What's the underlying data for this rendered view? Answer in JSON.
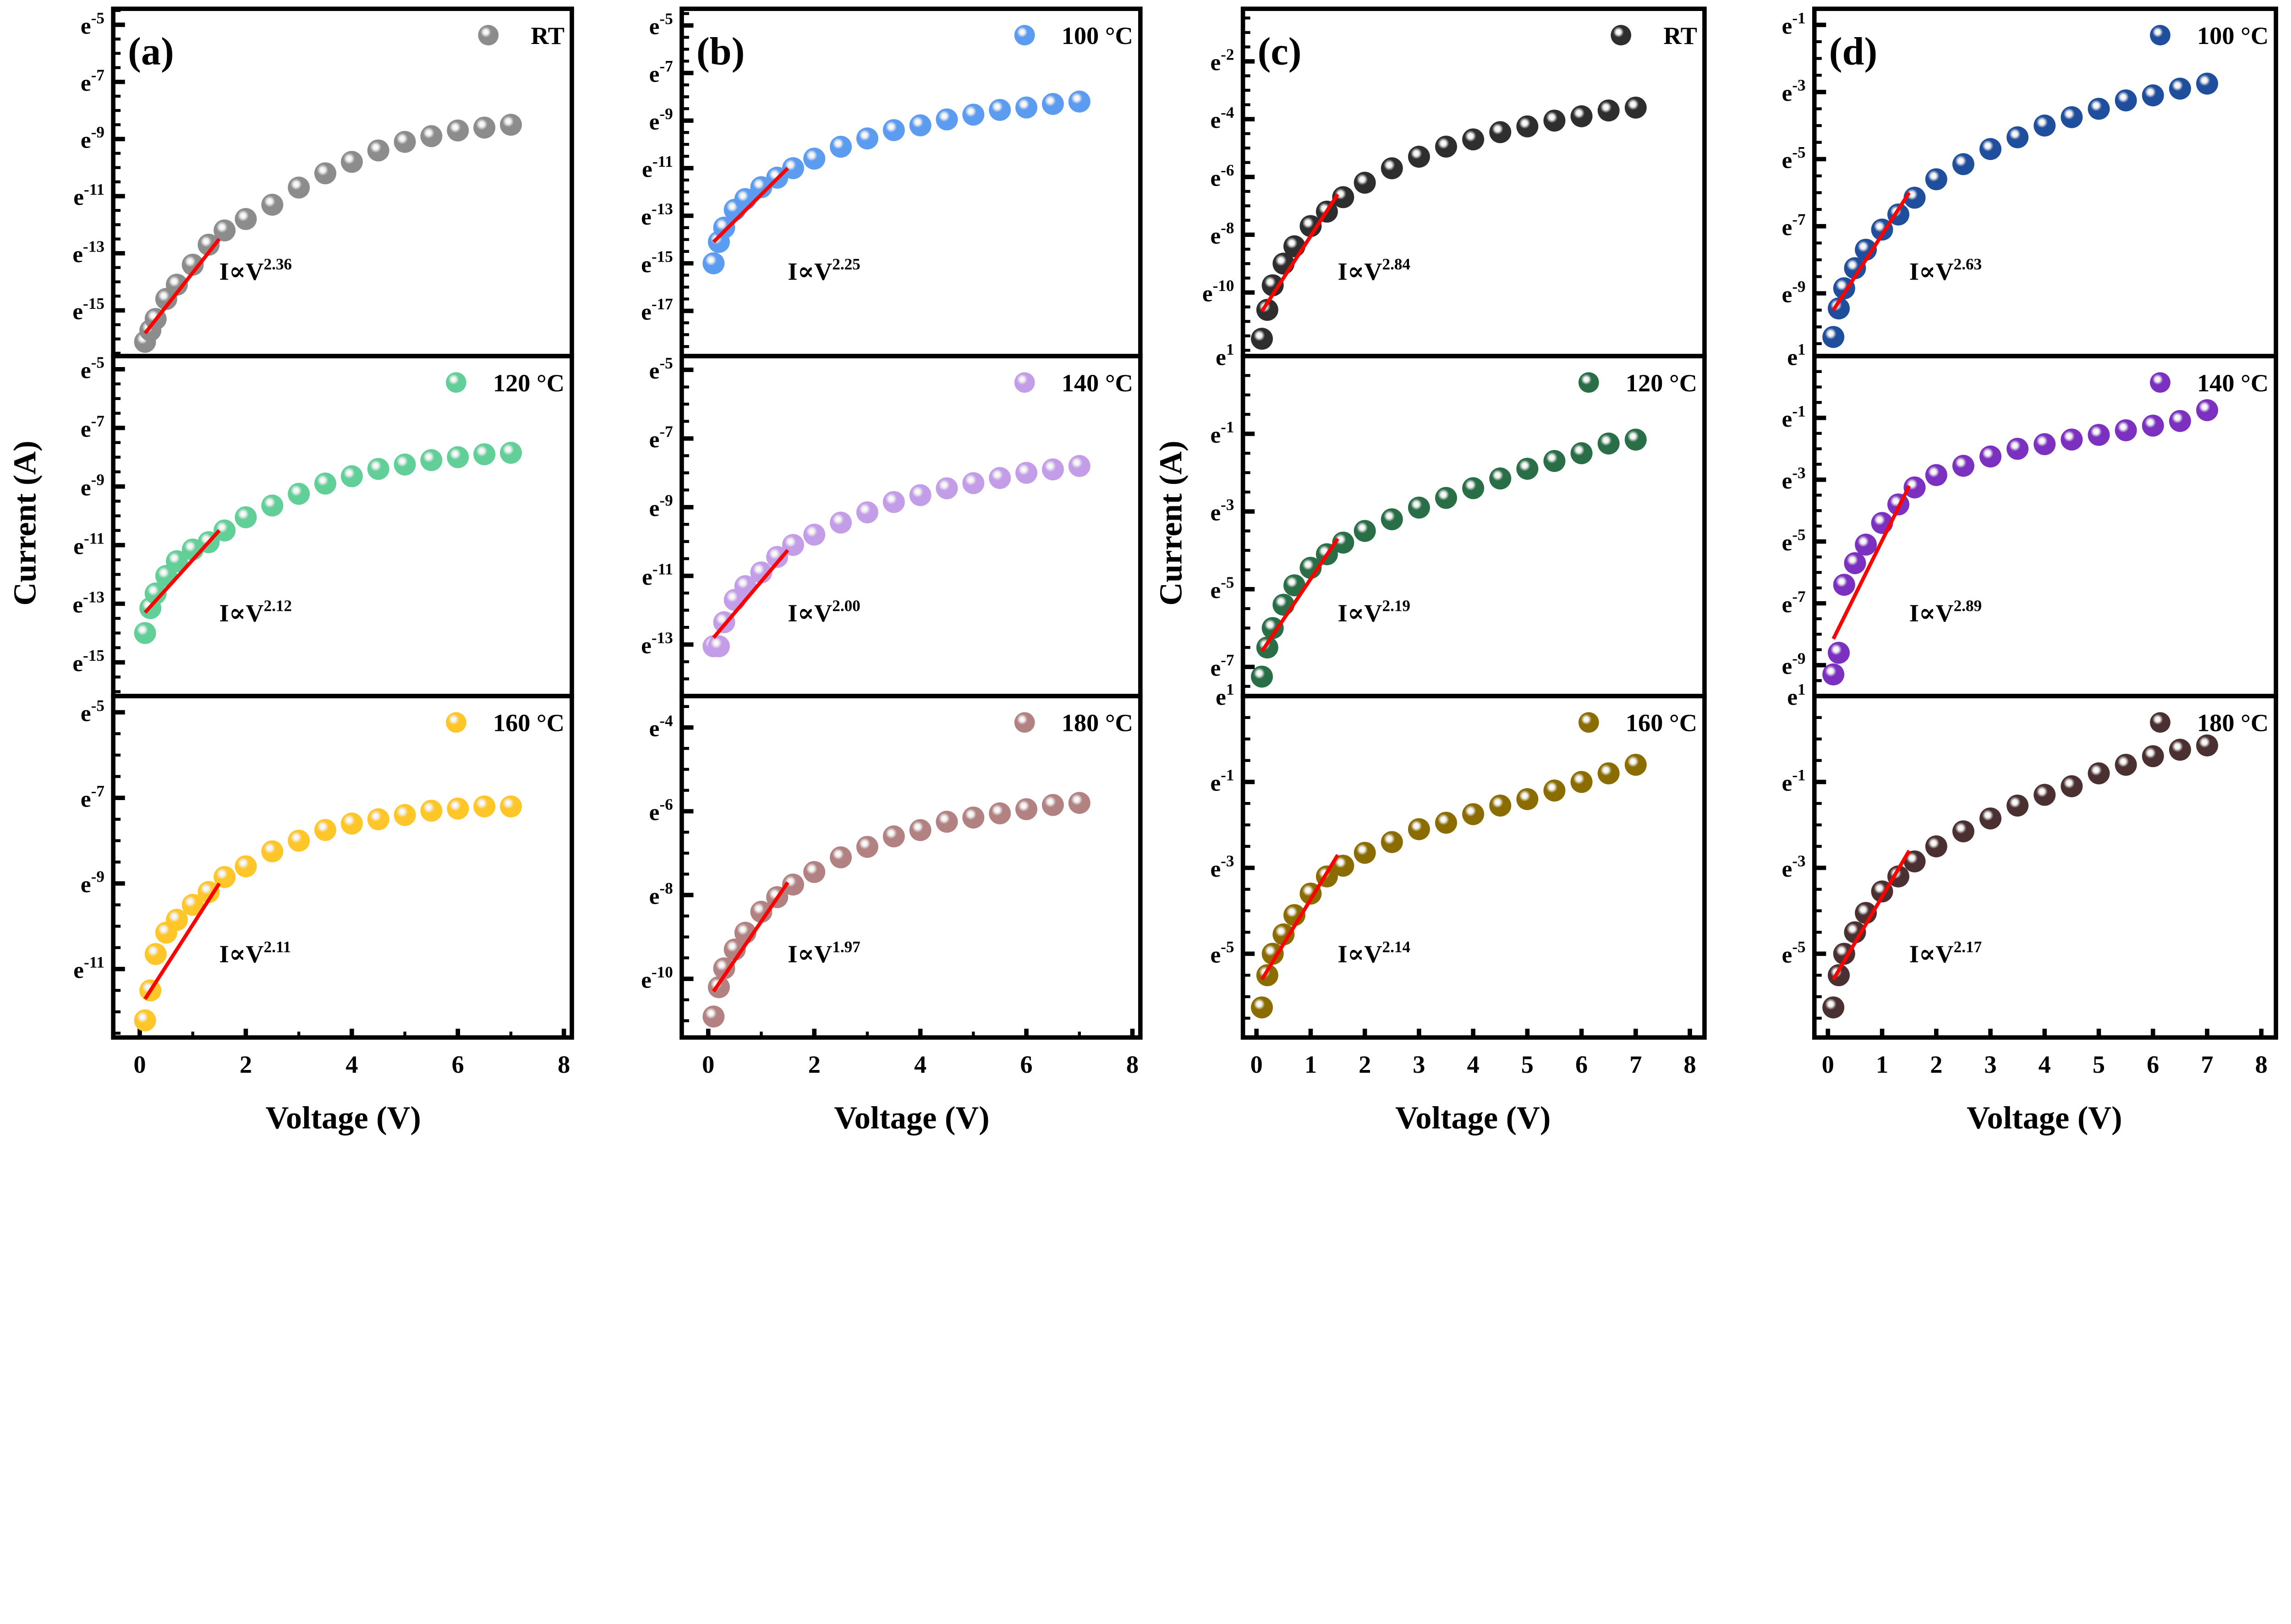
{
  "figure": {
    "xlabel": "Voltage (V)",
    "ylabel": "Current (A)",
    "tick_base": "e",
    "y_scale": "ln"
  },
  "chart_data": [
    {
      "type": "scatter",
      "panel": "(a)",
      "legend": "RT",
      "color": "#8c8c8c",
      "xlim": [
        -0.5,
        8.15
      ],
      "ylim": [
        -16.6,
        -4.44
      ],
      "xticks": [
        "0",
        "2",
        "4",
        "6",
        "8"
      ],
      "yticks": [
        "-5",
        "-7",
        "-9",
        "-11",
        "-13",
        "-15"
      ],
      "x": [
        0.1,
        0.2,
        0.3,
        0.5,
        0.7,
        1.0,
        1.3,
        1.6,
        2,
        2.5,
        3,
        3.5,
        4,
        4.5,
        5,
        5.5,
        6,
        6.5,
        7
      ],
      "y": [
        -16.1,
        -15.7,
        -15.3,
        -14.6,
        -14.1,
        -13.4,
        -12.7,
        -12.2,
        -11.8,
        -11.3,
        -10.7,
        -10.2,
        -9.8,
        -9.4,
        -9.1,
        -8.9,
        -8.7,
        -8.6,
        -8.5
      ],
      "fit": {
        "x": [
          0.1,
          1.5
        ],
        "y": [
          -15.8,
          -12.5
        ],
        "label_base": "I∝V",
        "label_exp": "2.36"
      }
    },
    {
      "type": "scatter",
      "panel": "",
      "legend": "120 °C",
      "color": "#62cf98",
      "xlim": [
        -0.5,
        8.15
      ],
      "ylim": [
        -16.15,
        -4.55
      ],
      "xticks": [
        "0",
        "2",
        "4",
        "6",
        "8"
      ],
      "yticks": [
        "-5",
        "-7",
        "-9",
        "-11",
        "-13",
        "-15"
      ],
      "x": [
        0.1,
        0.2,
        0.3,
        0.5,
        0.7,
        1.0,
        1.3,
        1.6,
        2,
        2.5,
        3,
        3.5,
        4,
        4.5,
        5,
        5.5,
        6,
        6.5,
        7
      ],
      "y": [
        -14.0,
        -13.15,
        -12.65,
        -12.05,
        -11.55,
        -11.15,
        -10.9,
        -10.5,
        -10.05,
        -9.65,
        -9.25,
        -8.9,
        -8.65,
        -8.4,
        -8.25,
        -8.1,
        -8.0,
        -7.9,
        -7.85
      ],
      "fit": {
        "x": [
          0.1,
          1.5
        ],
        "y": [
          -13.3,
          -10.5
        ],
        "label_base": "I∝V",
        "label_exp": "2.12"
      }
    },
    {
      "type": "scatter",
      "panel": "",
      "legend": "160 °C",
      "color": "#ffc62a",
      "xlim": [
        -0.5,
        8.15
      ],
      "ylim": [
        -12.6,
        -4.62
      ],
      "xticks": [
        "0",
        "2",
        "4",
        "6",
        "8"
      ],
      "yticks": [
        "-5",
        "-7",
        "-9",
        "-11"
      ],
      "x": [
        0.1,
        0.2,
        0.3,
        0.5,
        0.7,
        1.0,
        1.3,
        1.6,
        2,
        2.5,
        3,
        3.5,
        4,
        4.5,
        5,
        5.5,
        6,
        6.5,
        7
      ],
      "y": [
        -12.2,
        -11.5,
        -10.65,
        -10.15,
        -9.85,
        -9.5,
        -9.2,
        -8.85,
        -8.6,
        -8.25,
        -8.0,
        -7.75,
        -7.6,
        -7.5,
        -7.4,
        -7.3,
        -7.25,
        -7.2,
        -7.2
      ],
      "fit": {
        "x": [
          0.1,
          1.5
        ],
        "y": [
          -11.7,
          -9.0
        ],
        "label_base": "I∝V",
        "label_exp": "2.11"
      }
    },
    {
      "type": "scatter",
      "panel": "(b)",
      "legend": "100 °C",
      "color": "#5b9bf0",
      "xlim": [
        -0.5,
        8.15
      ],
      "ylim": [
        -18.9,
        -4.3
      ],
      "xticks": [
        "0",
        "2",
        "4",
        "6",
        "8"
      ],
      "yticks": [
        "-5",
        "-7",
        "-9",
        "-11",
        "-13",
        "-15",
        "-17"
      ],
      "x": [
        0.1,
        0.2,
        0.3,
        0.5,
        0.7,
        1.0,
        1.3,
        1.6,
        2,
        2.5,
        3,
        3.5,
        4,
        4.5,
        5,
        5.5,
        6,
        6.5,
        7
      ],
      "y": [
        -15.0,
        -14.1,
        -13.5,
        -12.75,
        -12.3,
        -11.8,
        -11.4,
        -11.0,
        -10.6,
        -10.1,
        -9.75,
        -9.4,
        -9.2,
        -8.95,
        -8.75,
        -8.55,
        -8.45,
        -8.3,
        -8.2
      ],
      "fit": {
        "x": [
          0.1,
          1.5
        ],
        "y": [
          -14.1,
          -11.0
        ],
        "label_base": "I∝V",
        "label_exp": "2.25"
      }
    },
    {
      "type": "scatter",
      "panel": "",
      "legend": "140 °C",
      "color": "#c49de8",
      "xlim": [
        -0.5,
        8.15
      ],
      "ylim": [
        -14.5,
        -4.6
      ],
      "xticks": [
        "0",
        "2",
        "4",
        "6",
        "8"
      ],
      "yticks": [
        "-5",
        "-7",
        "-9",
        "-11",
        "-13"
      ],
      "x": [
        0.1,
        0.2,
        0.3,
        0.5,
        0.7,
        1.0,
        1.3,
        1.6,
        2,
        2.5,
        3,
        3.5,
        4,
        4.5,
        5,
        5.5,
        6,
        6.5,
        7
      ],
      "y": [
        -13.05,
        -13.05,
        -12.35,
        -11.7,
        -11.3,
        -10.9,
        -10.45,
        -10.1,
        -9.8,
        -9.45,
        -9.15,
        -8.85,
        -8.65,
        -8.45,
        -8.3,
        -8.15,
        -8.0,
        -7.9,
        -7.8
      ],
      "fit": {
        "x": [
          0.1,
          1.5
        ],
        "y": [
          -12.8,
          -10.25
        ],
        "label_base": "I∝V",
        "label_exp": "2.00"
      }
    },
    {
      "type": "scatter",
      "panel": "",
      "legend": "180 °C",
      "color": "#b28282",
      "xlim": [
        -0.5,
        8.15
      ],
      "ylim": [
        -11.4,
        -3.25
      ],
      "xticks": [
        "0",
        "2",
        "4",
        "6",
        "8"
      ],
      "yticks": [
        "-4",
        "-6",
        "-8",
        "-10"
      ],
      "x": [
        0.1,
        0.2,
        0.3,
        0.5,
        0.7,
        1.0,
        1.3,
        1.6,
        2,
        2.5,
        3,
        3.5,
        4,
        4.5,
        5,
        5.5,
        6,
        6.5,
        7
      ],
      "y": [
        -10.9,
        -10.2,
        -9.75,
        -9.3,
        -8.9,
        -8.4,
        -8.05,
        -7.75,
        -7.45,
        -7.1,
        -6.85,
        -6.6,
        -6.45,
        -6.25,
        -6.15,
        -6.05,
        -5.95,
        -5.85,
        -5.8
      ],
      "fit": {
        "x": [
          0.1,
          1.5
        ],
        "y": [
          -10.3,
          -7.7
        ],
        "label_base": "I∝V",
        "label_exp": "1.97"
      }
    },
    {
      "type": "scatter",
      "panel": "(c)",
      "legend": "RT",
      "color": "#2e2e2e",
      "xlim": [
        -0.25,
        8.27
      ],
      "ylim": [
        -12.2,
        -0.18
      ],
      "xticks": [
        "0",
        "1",
        "2",
        "3",
        "4",
        "5",
        "6",
        "7",
        "8"
      ],
      "yticks": [
        "-2",
        "-4",
        "-6",
        "-8",
        "-10"
      ],
      "x": [
        0.1,
        0.2,
        0.3,
        0.5,
        0.7,
        1.0,
        1.3,
        1.6,
        2,
        2.5,
        3,
        3.5,
        4,
        4.5,
        5,
        5.5,
        6,
        6.5,
        7
      ],
      "y": [
        -11.6,
        -10.6,
        -9.75,
        -9.0,
        -8.4,
        -7.7,
        -7.2,
        -6.7,
        -6.2,
        -5.7,
        -5.3,
        -4.95,
        -4.7,
        -4.45,
        -4.25,
        -4.05,
        -3.9,
        -3.7,
        -3.6
      ],
      "fit": {
        "x": [
          0.1,
          1.5
        ],
        "y": [
          -10.65,
          -6.6
        ],
        "label_base": "I∝V",
        "label_exp": "2.84"
      }
    },
    {
      "type": "scatter",
      "panel": "",
      "legend": "120 °C",
      "color": "#2a6e48",
      "xlim": [
        -0.25,
        8.27
      ],
      "ylim": [
        -7.75,
        1
      ],
      "xticks": [
        "0",
        "1",
        "2",
        "3",
        "4",
        "5",
        "6",
        "7",
        "8"
      ],
      "yticks": [
        "1",
        "-1",
        "-3",
        "-5",
        "-7"
      ],
      "x": [
        0.1,
        0.2,
        0.3,
        0.5,
        0.7,
        1.0,
        1.3,
        1.6,
        2,
        2.5,
        3,
        3.5,
        4,
        4.5,
        5,
        5.5,
        6,
        6.5,
        7
      ],
      "y": [
        -7.25,
        -6.5,
        -6.0,
        -5.4,
        -4.9,
        -4.45,
        -4.1,
        -3.8,
        -3.5,
        -3.2,
        -2.9,
        -2.65,
        -2.4,
        -2.15,
        -1.9,
        -1.7,
        -1.5,
        -1.25,
        -1.15
      ],
      "fit": {
        "x": [
          0.1,
          1.5
        ],
        "y": [
          -6.6,
          -3.7
        ],
        "label_base": "I∝V",
        "label_exp": "2.19"
      }
    },
    {
      "type": "scatter",
      "panel": "",
      "legend": "160 °C",
      "color": "#8a6c00",
      "xlim": [
        -0.25,
        8.27
      ],
      "ylim": [
        -6.95,
        1
      ],
      "xticks": [
        "0",
        "1",
        "2",
        "3",
        "4",
        "5",
        "6",
        "7",
        "8"
      ],
      "yticks": [
        "1",
        "-1",
        "-3",
        "-5"
      ],
      "x": [
        0.1,
        0.2,
        0.3,
        0.5,
        0.7,
        1.0,
        1.3,
        1.6,
        2,
        2.5,
        3,
        3.5,
        4,
        4.5,
        5,
        5.5,
        6,
        6.5,
        7
      ],
      "y": [
        -6.25,
        -5.5,
        -5.0,
        -4.55,
        -4.1,
        -3.6,
        -3.2,
        -2.95,
        -2.65,
        -2.4,
        -2.1,
        -1.95,
        -1.75,
        -1.55,
        -1.4,
        -1.2,
        -1.0,
        -0.8,
        -0.6
      ],
      "fit": {
        "x": [
          0.1,
          1.5
        ],
        "y": [
          -5.6,
          -2.7
        ],
        "label_base": "I∝V",
        "label_exp": "2.14"
      }
    },
    {
      "type": "scatter",
      "panel": "(d)",
      "legend": "100 °C",
      "color": "#1f4e9c",
      "xlim": [
        -0.25,
        8.27
      ],
      "ylim": [
        -10.87,
        -0.52
      ],
      "xticks": [
        "0",
        "1",
        "2",
        "3",
        "4",
        "5",
        "6",
        "7",
        "8"
      ],
      "yticks": [
        "-1",
        "-3",
        "-5",
        "-7",
        "-9"
      ],
      "x": [
        0.1,
        0.2,
        0.3,
        0.5,
        0.7,
        1.0,
        1.3,
        1.6,
        2,
        2.5,
        3,
        3.5,
        4,
        4.5,
        5,
        5.5,
        6,
        6.5,
        7
      ],
      "y": [
        -10.3,
        -9.45,
        -8.85,
        -8.25,
        -7.7,
        -7.1,
        -6.65,
        -6.15,
        -5.6,
        -5.15,
        -4.7,
        -4.35,
        -4.0,
        -3.75,
        -3.5,
        -3.25,
        -3.1,
        -2.9,
        -2.75
      ],
      "fit": {
        "x": [
          0.1,
          1.5
        ],
        "y": [
          -9.5,
          -6.0
        ],
        "label_base": "I∝V",
        "label_exp": "2.63"
      }
    },
    {
      "type": "scatter",
      "panel": "",
      "legend": "140 °C",
      "color": "#7b30c0",
      "xlim": [
        -0.25,
        8.27
      ],
      "ylim": [
        -10,
        1
      ],
      "xticks": [
        "0",
        "1",
        "2",
        "3",
        "4",
        "5",
        "6",
        "7",
        "8"
      ],
      "yticks": [
        "1",
        "-1",
        "-3",
        "-5",
        "-7",
        "-9"
      ],
      "x": [
        0.1,
        0.2,
        0.3,
        0.5,
        0.7,
        1.0,
        1.3,
        1.6,
        2,
        2.5,
        3,
        3.5,
        4,
        4.5,
        5,
        5.5,
        6,
        6.5,
        7
      ],
      "y": [
        -9.3,
        -8.6,
        -6.4,
        -5.7,
        -5.1,
        -4.4,
        -3.8,
        -3.25,
        -2.85,
        -2.55,
        -2.25,
        -2.0,
        -1.85,
        -1.7,
        -1.55,
        -1.4,
        -1.25,
        -1.1,
        -0.75
      ],
      "fit": {
        "x": [
          0.1,
          1.5
        ],
        "y": [
          -8.15,
          -3.2
        ],
        "label_base": "I∝V",
        "label_exp": "2.89"
      }
    },
    {
      "type": "scatter",
      "panel": "",
      "legend": "180 °C",
      "color": "#4a3030",
      "xlim": [
        -0.25,
        8.27
      ],
      "ylim": [
        -6.95,
        1
      ],
      "xticks": [
        "0",
        "1",
        "2",
        "3",
        "4",
        "5",
        "6",
        "7",
        "8"
      ],
      "yticks": [
        "1",
        "-1",
        "-3",
        "-5"
      ],
      "x": [
        0.1,
        0.2,
        0.3,
        0.5,
        0.7,
        1.0,
        1.3,
        1.6,
        2,
        2.5,
        3,
        3.5,
        4,
        4.5,
        5,
        5.5,
        6,
        6.5,
        7
      ],
      "y": [
        -6.25,
        -5.5,
        -5.0,
        -4.5,
        -4.05,
        -3.55,
        -3.2,
        -2.85,
        -2.5,
        -2.15,
        -1.85,
        -1.55,
        -1.3,
        -1.1,
        -0.8,
        -0.6,
        -0.4,
        -0.25,
        -0.15
      ],
      "fit": {
        "x": [
          0.1,
          1.5
        ],
        "y": [
          -5.6,
          -2.6
        ],
        "label_base": "I∝V",
        "label_exp": "2.17"
      }
    }
  ]
}
